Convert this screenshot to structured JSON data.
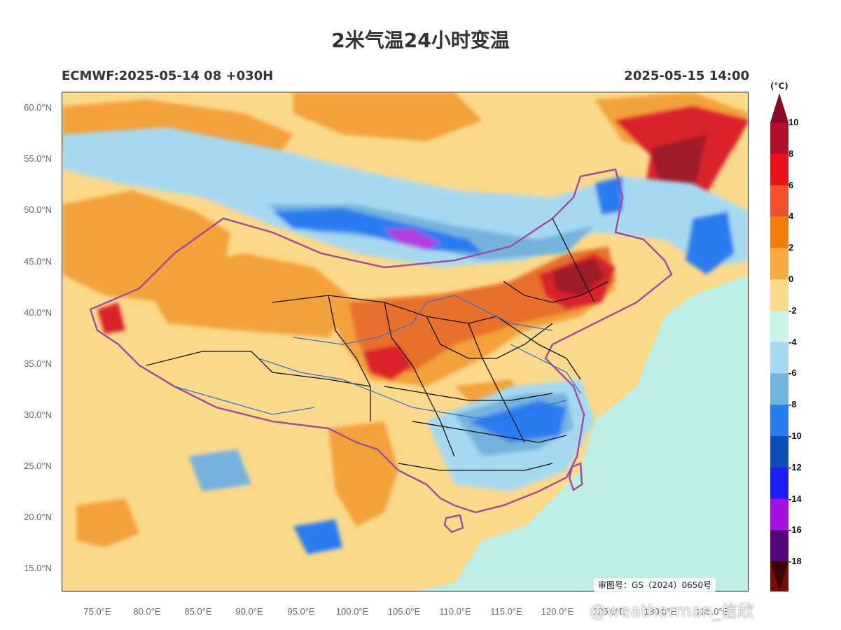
{
  "title": "2米气温24小时变温",
  "subtitle_left": "ECMWF:2025-05-14 08 +030H",
  "subtitle_right": "2025-05-15 14:00",
  "lat_labels": [
    "60.0°N",
    "55.0°N",
    "50.0°N",
    "45.0°N",
    "40.0°N",
    "35.0°N",
    "30.0°N",
    "25.0°N",
    "20.0°N",
    "15.0°N"
  ],
  "lon_labels": [
    "75.0°E",
    "80.0°E",
    "85.0°E",
    "90.0°E",
    "95.0°E",
    "100.0°E",
    "105.0°E",
    "110.0°E",
    "115.0°E",
    "120.0°E",
    "125.0°E",
    "130.0°E",
    "135.0°E"
  ],
  "colorbar": {
    "unit": "(°C)",
    "labels": [
      "10",
      "8",
      "6",
      "4",
      "2",
      "0",
      "-2",
      "-4",
      "-6",
      "-8",
      "-10",
      "-12",
      "-14",
      "-16",
      "-18"
    ],
    "colors": [
      "#b0102a",
      "#e8131b",
      "#f0502a",
      "#f57d0c",
      "#f9a93f",
      "#fbd98a",
      "#c9f4e6",
      "#a6d9f0",
      "#74b3dd",
      "#2a7df0",
      "#0d4eb8",
      "#1d1ef2",
      "#a610e0",
      "#52087a",
      "#7b0a0a"
    ],
    "top_arrow_color": "#8a0a25",
    "bottom_arrow_color": "#3d0505"
  },
  "approval_number": "审图号：GS（2024）0650号",
  "watermark": "@weatherman_信欣",
  "map_colors": {
    "ocean": "#bdeee6",
    "land_warm": "#fbd98a",
    "orange": "#f3a13a",
    "dark_orange": "#e8702a",
    "red": "#d9232a",
    "dark_red": "#9c1b2a",
    "light_blue": "#a6d9f0",
    "mid_blue": "#74b3dd",
    "blue": "#2a7df0",
    "purple": "#b23ce0",
    "border": "#a0509a",
    "province": "#111111",
    "river": "#2d6fd6"
  }
}
